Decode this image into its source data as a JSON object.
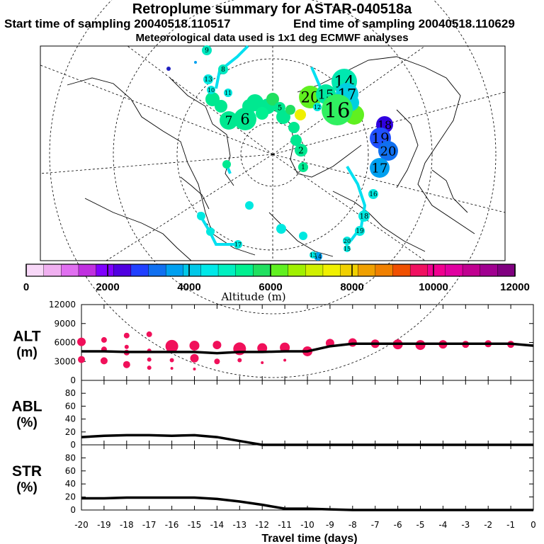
{
  "header": {
    "title": "Retroplume summary for ASTAR-040518a",
    "start_label": "Start time of sampling 20040518.110517",
    "end_label": "End time of sampling 20040518.110629",
    "met_label": "Meteorological data used is 1x1 deg ECMWF analyses"
  },
  "colorbar": {
    "ticks": [
      "0",
      "2000",
      "4000",
      "6000",
      "8000",
      "10000",
      "12000"
    ],
    "label": "Altitude (m)",
    "colors": [
      "#f8d8f8",
      "#f0b0f0",
      "#e070f0",
      "#c030e0",
      "#8000ff",
      "#5000e0",
      "#2040ff",
      "#1070f0",
      "#00a0f0",
      "#00c8e8",
      "#00e8e8",
      "#00f0c0",
      "#00f090",
      "#20e060",
      "#60f020",
      "#a0f000",
      "#d0f000",
      "#f0f000",
      "#f0d000",
      "#f0a000",
      "#f08000",
      "#f05000",
      "#f01060",
      "#f00090",
      "#e000a0",
      "#c00090",
      "#a00090",
      "#800080"
    ]
  },
  "map": {
    "labels": [
      {
        "t": "14",
        "c": "#00e8b0",
        "big": true
      },
      {
        "t": "17",
        "c": "#00d0e0",
        "big": true
      },
      {
        "t": "20",
        "c": "#60f020",
        "big": true
      },
      {
        "t": "15",
        "c": "#00e8a0",
        "big": true
      },
      {
        "t": "16",
        "c": "#30f060",
        "big": true
      },
      {
        "t": "18",
        "c": "#3000e0",
        "big": false
      },
      {
        "t": "19",
        "c": "#2050ff",
        "big": true
      },
      {
        "t": "20",
        "c": "#1070f0",
        "big": true
      },
      {
        "t": "17",
        "c": "#00a0f0",
        "big": true
      },
      {
        "t": "7",
        "c": "#00e890",
        "big": true
      },
      {
        "t": "6",
        "c": "#00e890",
        "big": true
      },
      {
        "t": "5",
        "c": "#00e890",
        "big": false
      },
      {
        "t": "2",
        "c": "#00e890",
        "big": false
      },
      {
        "t": "1",
        "c": "#00e890",
        "big": false
      },
      {
        "t": "9",
        "c": "#00e8c0",
        "big": false
      },
      {
        "t": "8",
        "c": "#00e8c0",
        "big": false
      },
      {
        "t": "13",
        "c": "#00e8e0",
        "big": false
      },
      {
        "t": "10",
        "c": "#00e8e0",
        "big": false
      },
      {
        "t": "11",
        "c": "#00e8e0",
        "big": false
      },
      {
        "t": "12",
        "c": "#00e8e0",
        "big": false
      },
      {
        "t": "16",
        "c": "#00e8e0",
        "big": false
      },
      {
        "t": "18",
        "c": "#00e8e0",
        "big": false
      },
      {
        "t": "19",
        "c": "#00e8e0",
        "big": false
      },
      {
        "t": "20",
        "c": "#00e8e0",
        "big": false
      },
      {
        "t": "15",
        "c": "#00e8e0",
        "big": false
      },
      {
        "t": "14",
        "c": "#00a0f0",
        "big": false
      },
      {
        "t": "13",
        "c": "#00e8e0",
        "big": false
      },
      {
        "t": "17",
        "c": "#00e8e0",
        "big": false
      }
    ]
  },
  "chart_data": [
    {
      "type": "line",
      "name": "ALT",
      "ylabel": "ALT (m)",
      "ylabel_lines": [
        "ALT",
        "(m)"
      ],
      "ylim": [
        0,
        12000
      ],
      "yticks": [
        "0",
        "3000",
        "6000",
        "9000",
        "12000"
      ],
      "ytick_values": [
        0,
        3000,
        6000,
        9000,
        12000
      ],
      "x": [
        -20,
        -19,
        -18,
        -17,
        -16,
        -15,
        -14,
        -13,
        -12,
        -11,
        -10,
        -9,
        -8,
        -7,
        -6,
        -5,
        -4,
        -3,
        -2,
        -1,
        0
      ],
      "line": [
        4600,
        4600,
        4500,
        4500,
        4500,
        4500,
        4300,
        4500,
        4500,
        4600,
        4600,
        5400,
        5800,
        5800,
        5800,
        5800,
        5800,
        5800,
        5800,
        5800,
        5500
      ],
      "bubbles": [
        {
          "x": -20,
          "y": 6100,
          "s": 6
        },
        {
          "x": -20,
          "y": 3300,
          "s": 5
        },
        {
          "x": -19,
          "y": 6400,
          "s": 4
        },
        {
          "x": -19,
          "y": 4900,
          "s": 4
        },
        {
          "x": -19,
          "y": 3100,
          "s": 5
        },
        {
          "x": -18,
          "y": 7100,
          "s": 4
        },
        {
          "x": -18,
          "y": 5300,
          "s": 3
        },
        {
          "x": -18,
          "y": 4400,
          "s": 4
        },
        {
          "x": -18,
          "y": 2500,
          "s": 5
        },
        {
          "x": -17,
          "y": 7300,
          "s": 4
        },
        {
          "x": -17,
          "y": 4700,
          "s": 3
        },
        {
          "x": -17,
          "y": 3300,
          "s": 3
        },
        {
          "x": -17,
          "y": 2000,
          "s": 3
        },
        {
          "x": -16,
          "y": 5400,
          "s": 9
        },
        {
          "x": -16,
          "y": 3200,
          "s": 3
        },
        {
          "x": -16,
          "y": 1900,
          "s": 2
        },
        {
          "x": -15,
          "y": 5500,
          "s": 7
        },
        {
          "x": -15,
          "y": 3500,
          "s": 6
        },
        {
          "x": -15,
          "y": 1800,
          "s": 2
        },
        {
          "x": -14,
          "y": 5600,
          "s": 6
        },
        {
          "x": -14,
          "y": 3000,
          "s": 4
        },
        {
          "x": -13,
          "y": 5000,
          "s": 9
        },
        {
          "x": -13,
          "y": 3200,
          "s": 3
        },
        {
          "x": -12,
          "y": 5100,
          "s": 7
        },
        {
          "x": -12,
          "y": 2800,
          "s": 2
        },
        {
          "x": -11,
          "y": 5200,
          "s": 7
        },
        {
          "x": -11,
          "y": 3200,
          "s": 2
        },
        {
          "x": -10,
          "y": 4600,
          "s": 7
        },
        {
          "x": -9,
          "y": 5900,
          "s": 6
        },
        {
          "x": -8,
          "y": 6000,
          "s": 6
        },
        {
          "x": -7,
          "y": 5800,
          "s": 6
        },
        {
          "x": -6,
          "y": 5700,
          "s": 7
        },
        {
          "x": -5,
          "y": 5600,
          "s": 7
        },
        {
          "x": -4,
          "y": 5700,
          "s": 6
        },
        {
          "x": -3,
          "y": 5700,
          "s": 5
        },
        {
          "x": -2,
          "y": 5800,
          "s": 5
        },
        {
          "x": -1,
          "y": 5700,
          "s": 5
        }
      ]
    },
    {
      "type": "line",
      "name": "ABL",
      "ylabel": "ABL (%)",
      "ylabel_lines": [
        "ABL",
        "(%)"
      ],
      "ylim": [
        0,
        100
      ],
      "yticks": [
        "0",
        "20",
        "40",
        "60",
        "80"
      ],
      "ytick_values": [
        0,
        20,
        40,
        60,
        80
      ],
      "x": [
        -20,
        -19,
        -18,
        -17,
        -16,
        -15,
        -14,
        -13,
        -12,
        -11,
        -10,
        -9,
        -8,
        -7,
        -6,
        -5,
        -4,
        -3,
        -2,
        -1,
        0
      ],
      "line": [
        12,
        14,
        15,
        15,
        14,
        15,
        12,
        6,
        0,
        0,
        0,
        0,
        0,
        0,
        0,
        0,
        0,
        0,
        0,
        0,
        0
      ]
    },
    {
      "type": "line",
      "name": "STR",
      "ylabel": "STR (%)",
      "ylabel_lines": [
        "STR",
        "(%)"
      ],
      "ylim": [
        0,
        100
      ],
      "yticks": [
        "0",
        "20",
        "40",
        "60",
        "80"
      ],
      "ytick_values": [
        0,
        20,
        40,
        60,
        80
      ],
      "x": [
        -20,
        -19,
        -18,
        -17,
        -16,
        -15,
        -14,
        -13,
        -12,
        -11,
        -10,
        -9,
        -8,
        -7,
        -6,
        -5,
        -4,
        -3,
        -2,
        -1,
        0
      ],
      "line": [
        18,
        18,
        19,
        19,
        19,
        19,
        17,
        13,
        8,
        2,
        2,
        1,
        0,
        0,
        0,
        0,
        0,
        0,
        0,
        0,
        0
      ]
    }
  ],
  "xaxis": {
    "ticks": [
      "-20",
      "-19",
      "-18",
      "-17",
      "-16",
      "-15",
      "-14",
      "-13",
      "-12",
      "-11",
      "-10",
      "-9",
      "-8",
      "-7",
      "-6",
      "-5",
      "-4",
      "-3",
      "-2",
      "-1",
      "0"
    ],
    "label": "Travel time (days)"
  }
}
